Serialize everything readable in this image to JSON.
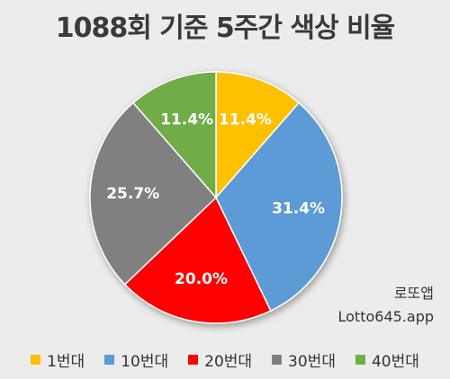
{
  "title": "1088회 기준 5주간 색상 비율",
  "watermark": {
    "line1": "로또앱",
    "line2": "Lotto645.app"
  },
  "chart_data": {
    "type": "pie",
    "title": "1088회 기준 5주간 색상 비율",
    "categories": [
      "1번대",
      "10번대",
      "20번대",
      "30번대",
      "40번대"
    ],
    "values": [
      11.4,
      31.4,
      20.0,
      25.7,
      11.4
    ],
    "labels": [
      "11.4%",
      "31.4%",
      "20.0%",
      "25.7%",
      "11.4%"
    ],
    "colors": [
      "#ffc000",
      "#5b9bd5",
      "#ff0000",
      "#808080",
      "#70ad47"
    ],
    "start": "12 o'clock, clockwise",
    "legend_position": "bottom"
  },
  "legend": [
    {
      "label": "1번대",
      "color": "#ffc000"
    },
    {
      "label": "10번대",
      "color": "#5b9bd5"
    },
    {
      "label": "20번대",
      "color": "#ff0000"
    },
    {
      "label": "30번대",
      "color": "#808080"
    },
    {
      "label": "40번대",
      "color": "#70ad47"
    }
  ]
}
